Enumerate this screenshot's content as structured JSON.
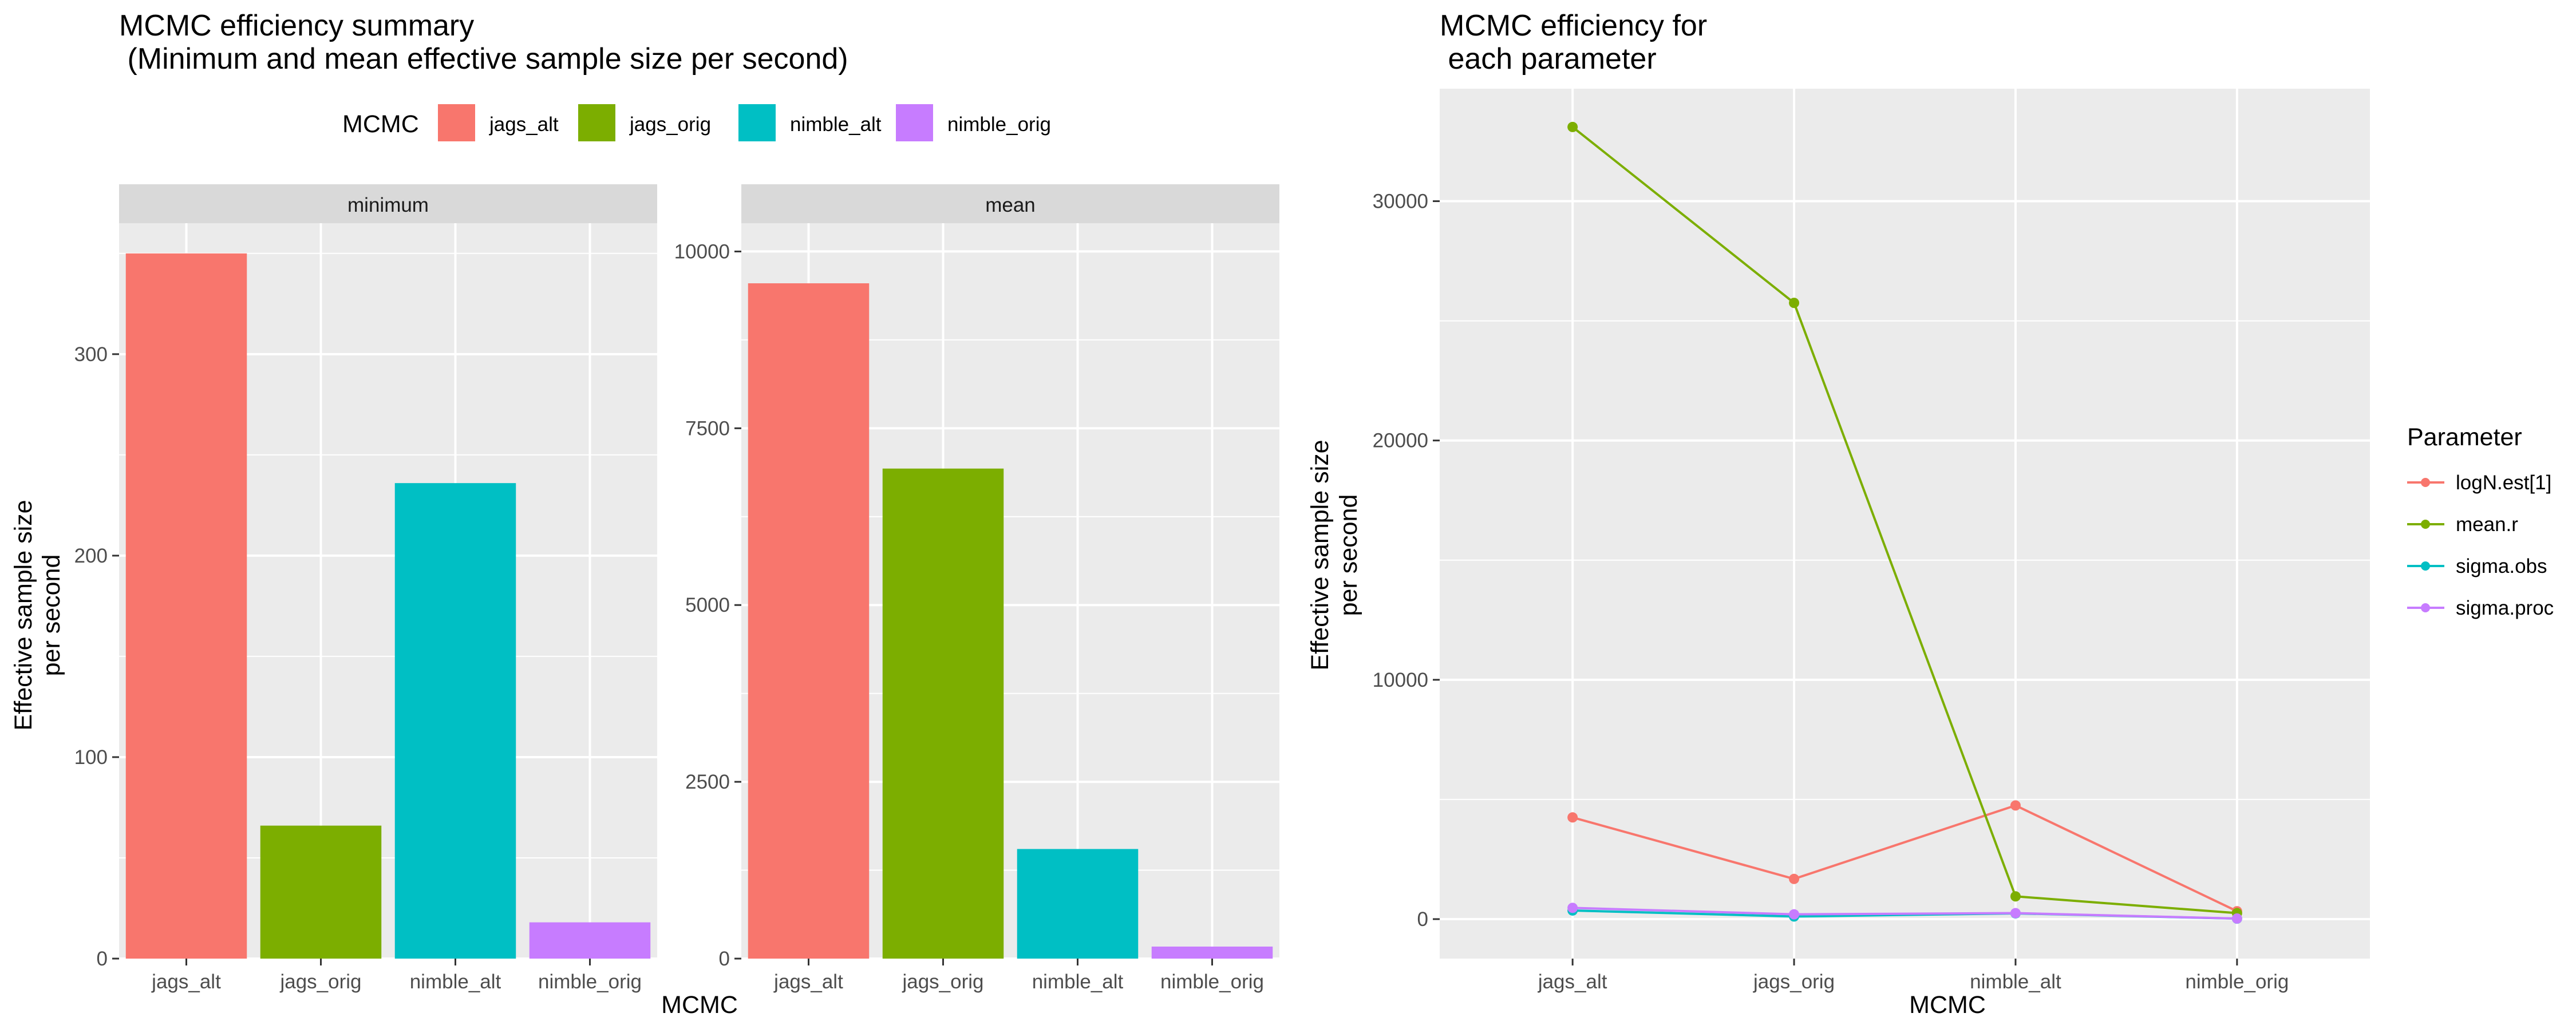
{
  "colors": {
    "panel_bg": "#ebebeb",
    "grid": "#ffffff",
    "strip_bg": "#d9d9d9",
    "jags_alt": "#F8766D",
    "jags_orig": "#7CAE00",
    "nimble_alt": "#00BFC4",
    "nimble_orig": "#C77CFF"
  },
  "chart_data": [
    {
      "type": "bar",
      "title_line1": "MCMC efficiency summary",
      "title_line2": " (Minimum and mean effective sample size per second)",
      "xlabel": "MCMC",
      "ylabel_line1": "Effective sample size",
      "ylabel_line2": "per second",
      "legend": {
        "title": "MCMC",
        "position": "top",
        "entries": [
          "jags_alt",
          "jags_orig",
          "nimble_alt",
          "nimble_orig"
        ]
      },
      "categories": [
        "jags_alt",
        "jags_orig",
        "nimble_alt",
        "nimble_orig"
      ],
      "facets": [
        {
          "strip": "minimum",
          "values": [
            350,
            66,
            236,
            18
          ],
          "ylim": [
            0,
            365
          ],
          "yticks": [
            0,
            100,
            200,
            300
          ],
          "ytick_labels": [
            "0",
            "100",
            "200",
            "300"
          ]
        },
        {
          "strip": "mean",
          "values": [
            9550,
            6930,
            1550,
            170
          ],
          "ylim": [
            0,
            10400
          ],
          "yticks": [
            0,
            2500,
            5000,
            7500,
            10000
          ],
          "ytick_labels": [
            "0",
            "2500",
            "5000",
            "7500",
            "10000"
          ]
        }
      ]
    },
    {
      "type": "line",
      "title_line1": "MCMC efficiency for",
      "title_line2": " each parameter",
      "xlabel": "MCMC",
      "ylabel_line1": "Effective sample size",
      "ylabel_line2": "per second",
      "x": [
        "jags_alt",
        "jags_orig",
        "nimble_alt",
        "nimble_orig"
      ],
      "ylim": [
        -1650,
        34700
      ],
      "yticks": [
        0,
        10000,
        20000,
        30000
      ],
      "ytick_labels": [
        "0",
        "10000",
        "20000",
        "30000"
      ],
      "legend": {
        "title": "Parameter",
        "position": "right"
      },
      "series": [
        {
          "name": "logN.est[1]",
          "color": "#F8766D",
          "values": [
            4250,
            1680,
            4750,
            330
          ]
        },
        {
          "name": "mean.r",
          "color": "#7CAE00",
          "values": [
            33100,
            25750,
            950,
            250
          ]
        },
        {
          "name": "sigma.obs",
          "color": "#00BFC4",
          "values": [
            360,
            110,
            240,
            20
          ]
        },
        {
          "name": "sigma.proc",
          "color": "#C77CFF",
          "values": [
            470,
            200,
            250,
            25
          ]
        }
      ]
    }
  ]
}
